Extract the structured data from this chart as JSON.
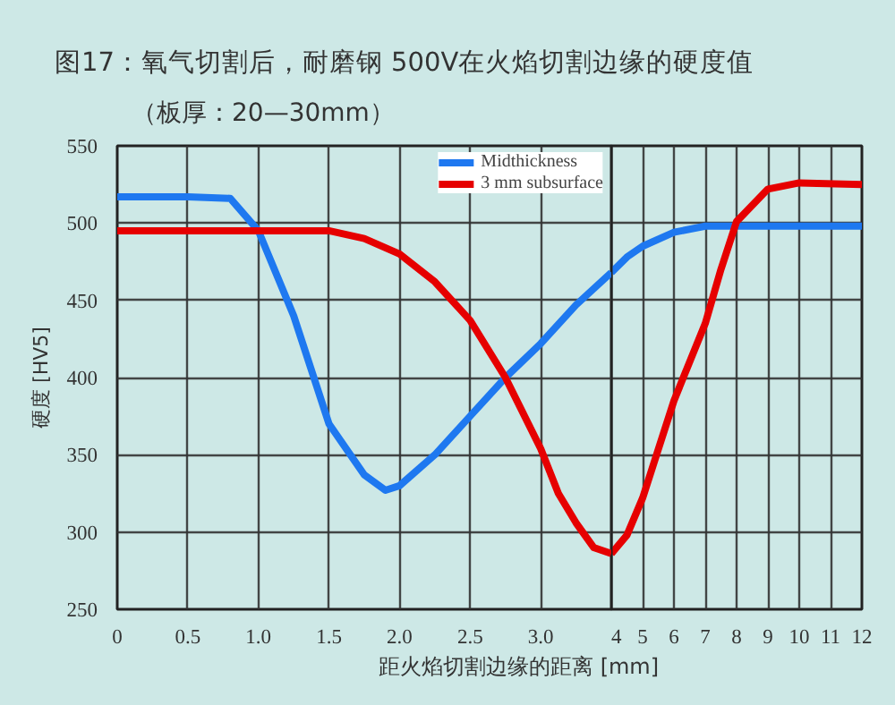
{
  "chart_data": [
    {
      "type": "line",
      "title": "图17：氧气切割后，耐磨钢 500V在火焰切割边缘的硬度值",
      "subtitle": "（板厚：20—30mm）",
      "xlabel": "距火焰切割边缘的距离 [mm]",
      "ylabel": "硬度 [HV5]",
      "xlim": [
        0,
        3.5
      ],
      "ylim": [
        250,
        550
      ],
      "xticks": [
        0,
        0.5,
        {
          "value": 1,
          "label": "1.0"
        },
        1.5,
        {
          "value": 2,
          "label": "2.0"
        },
        2.5,
        {
          "value": 3,
          "label": "3.0"
        }
      ],
      "yticks": [
        250,
        300,
        350,
        400,
        450,
        500,
        550
      ],
      "grid": true,
      "legend": "top right",
      "line_style": "solid",
      "series": [
        {
          "name": "Midthickness",
          "color": "#1e78f0",
          "x": [
            0,
            0.5,
            0.8,
            1.0,
            1.25,
            1.5,
            1.75,
            1.9,
            2.0,
            2.25,
            2.5,
            2.75,
            3.0,
            3.25,
            3.5
          ],
          "values": [
            517,
            517,
            516,
            495,
            440,
            370,
            337,
            327,
            330,
            350,
            375,
            400,
            422,
            447,
            468
          ]
        },
        {
          "name": "3 mm subsurface",
          "color": "#e60000",
          "x": [
            0,
            0.5,
            1.0,
            1.5,
            1.75,
            2.0,
            2.25,
            2.5,
            2.75,
            3.0,
            3.125,
            3.25,
            3.375,
            3.5
          ],
          "values": [
            495,
            495,
            495,
            495,
            490,
            480,
            462,
            437,
            400,
            354,
            325,
            306,
            290,
            286
          ]
        }
      ]
    },
    {
      "type": "line",
      "xlim": [
        4,
        12
      ],
      "ylim": [
        250,
        550
      ],
      "xticks": [
        4,
        5,
        6,
        7,
        8,
        9,
        10,
        11,
        12
      ],
      "yticks": [
        250,
        300,
        350,
        400,
        450,
        500,
        550
      ],
      "grid": true,
      "tick_labels": "x",
      "line_style": "solid",
      "series": [
        {
          "color": "#1e78f0",
          "x": [
            4,
            4.5,
            5,
            6,
            7,
            8,
            12
          ],
          "values": [
            468,
            478,
            485,
            494,
            498,
            498,
            498
          ]
        },
        {
          "color": "#e60000",
          "x": [
            4,
            4.5,
            5,
            6,
            7,
            7.5,
            8,
            9,
            10,
            12
          ],
          "values": [
            286,
            298,
            322,
            385,
            435,
            470,
            501,
            522,
            526,
            525
          ]
        }
      ]
    }
  ]
}
